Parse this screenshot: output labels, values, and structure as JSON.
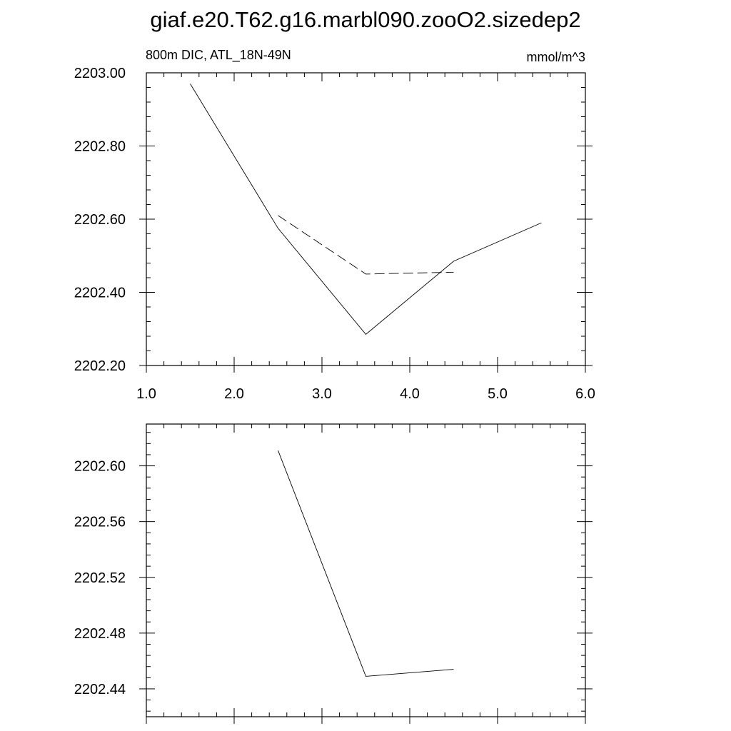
{
  "title": "giaf.e20.T62.g16.marbl090.zooO2.sizedep2",
  "chart_data": [
    {
      "type": "line",
      "subtitle_left": "800m DIC, ATL_18N-49N",
      "subtitle_right": "mmol/m^3",
      "xlim": [
        1.0,
        6.0
      ],
      "ylim": [
        2202.2,
        2203.0
      ],
      "x_ticks": [
        "1.0",
        "2.0",
        "3.0",
        "4.0",
        "5.0",
        "6.0"
      ],
      "y_ticks": [
        "2202.20",
        "2202.40",
        "2202.60",
        "2202.80",
        "2203.00"
      ],
      "series": [
        {
          "style": "solid",
          "x": [
            1.5,
            2.5,
            3.5,
            4.5,
            5.5
          ],
          "y": [
            2202.97,
            2202.575,
            2202.285,
            2202.485,
            2202.59
          ]
        },
        {
          "style": "dashed",
          "x": [
            2.5,
            3.5,
            4.5
          ],
          "y": [
            2202.61,
            2202.45,
            2202.455
          ]
        }
      ]
    },
    {
      "type": "line",
      "xlim": [
        1.0,
        6.0
      ],
      "ylim": [
        2202.42,
        2202.63
      ],
      "y_ticks": [
        "2202.44",
        "2202.48",
        "2202.52",
        "2202.56",
        "2202.60"
      ],
      "series": [
        {
          "style": "solid",
          "x": [
            2.5,
            3.5,
            4.5
          ],
          "y": [
            2202.611,
            2202.449,
            2202.454
          ]
        }
      ]
    }
  ]
}
